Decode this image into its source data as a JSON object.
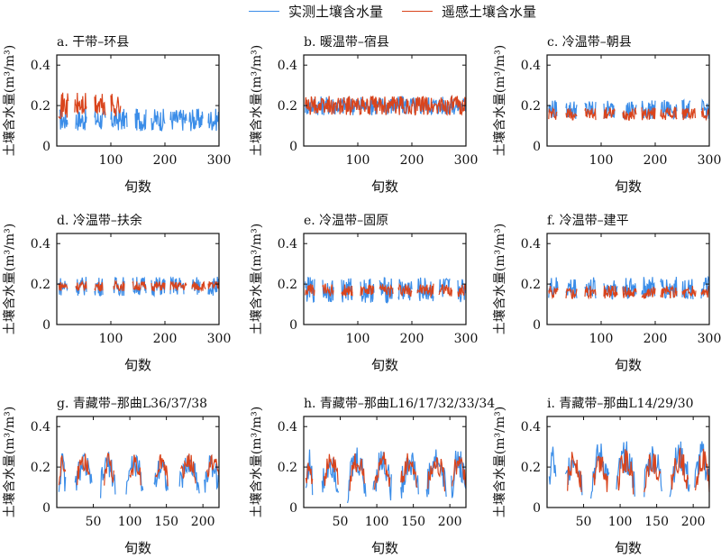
{
  "chart_data": {
    "type": "line",
    "legend": {
      "placement": "top-center",
      "entries": [
        {
          "name": "实测土壤含水量",
          "color": "#3b8de8"
        },
        {
          "name": "遥感土壤含水量",
          "color": "#d9441c"
        }
      ]
    },
    "panels": [
      {
        "id": "a",
        "title": "a. 干带–环县",
        "xlabel": "旬数",
        "ylabel": "土壤含水量(m³/m³)",
        "xlim": [
          0,
          300
        ],
        "ylim": [
          0,
          0.45
        ],
        "xticks": [
          100,
          200,
          300
        ],
        "yticks": [
          0,
          0.2,
          0.4
        ],
        "measured_segments": [
          [
            5,
            20
          ],
          [
            35,
            55
          ],
          [
            70,
            90
          ],
          [
            100,
            130
          ],
          [
            145,
            165
          ],
          [
            175,
            200
          ],
          [
            210,
            240
          ],
          [
            245,
            270
          ],
          [
            280,
            300
          ]
        ],
        "measured_level": 0.13,
        "measured_amp": 0.07,
        "remote_segments": [
          [
            3,
            22
          ],
          [
            33,
            55
          ],
          [
            70,
            90
          ],
          [
            100,
            118
          ]
        ],
        "remote_level": 0.2,
        "remote_amp": 0.08
      },
      {
        "id": "b",
        "title": "b. 暖温带–宿县",
        "xlabel": "旬数",
        "ylabel": "土壤含水量(m³/m³)",
        "xlim": [
          0,
          300
        ],
        "ylim": [
          0,
          0.45
        ],
        "xticks": [
          100,
          200,
          300
        ],
        "yticks": [
          0,
          0.2,
          0.4
        ],
        "measured_segments": [
          [
            3,
            300
          ]
        ],
        "measured_level": 0.2,
        "measured_amp": 0.06,
        "remote_segments": [
          [
            3,
            300
          ]
        ],
        "remote_level": 0.2,
        "remote_amp": 0.06
      },
      {
        "id": "c",
        "title": "c. 冷温带–朝县",
        "xlabel": "旬数",
        "ylabel": "土壤含水量(m³/m³)",
        "xlim": [
          0,
          300
        ],
        "ylim": [
          0,
          0.45
        ],
        "xticks": [
          100,
          200,
          300
        ],
        "yticks": [
          0,
          0.2,
          0.4
        ],
        "measured_segments": [
          [
            3,
            18
          ],
          [
            35,
            55
          ],
          [
            70,
            90
          ],
          [
            105,
            125
          ],
          [
            140,
            165
          ],
          [
            175,
            200
          ],
          [
            210,
            240
          ],
          [
            250,
            265
          ],
          [
            285,
            300
          ]
        ],
        "measured_level": 0.18,
        "measured_amp": 0.06,
        "remote_segments": [
          [
            3,
            18
          ],
          [
            35,
            55
          ],
          [
            70,
            90
          ],
          [
            105,
            125
          ],
          [
            140,
            165
          ],
          [
            175,
            200
          ],
          [
            210,
            240
          ],
          [
            250,
            275
          ],
          [
            285,
            300
          ]
        ],
        "remote_level": 0.16,
        "remote_amp": 0.04
      },
      {
        "id": "d",
        "title": "d. 冷温带–扶余",
        "xlabel": "旬数",
        "ylabel": "土壤含水量(m³/m³)",
        "xlim": [
          0,
          300
        ],
        "ylim": [
          0,
          0.45
        ],
        "xticks": [
          100,
          200,
          300
        ],
        "yticks": [
          0,
          0.2,
          0.4
        ],
        "measured_segments": [
          [
            3,
            20
          ],
          [
            35,
            55
          ],
          [
            70,
            85
          ],
          [
            105,
            125
          ],
          [
            140,
            165
          ],
          [
            175,
            200
          ],
          [
            210,
            235
          ],
          [
            250,
            265
          ],
          [
            280,
            300
          ]
        ],
        "measured_level": 0.19,
        "measured_amp": 0.06,
        "remote_segments": [
          [
            3,
            20
          ],
          [
            35,
            55
          ],
          [
            70,
            85
          ],
          [
            105,
            125
          ],
          [
            140,
            165
          ],
          [
            175,
            200
          ],
          [
            210,
            240
          ],
          [
            250,
            275
          ],
          [
            280,
            300
          ]
        ],
        "remote_level": 0.19,
        "remote_amp": 0.03
      },
      {
        "id": "e",
        "title": "e. 冷温带–固原",
        "xlabel": "旬数",
        "ylabel": "土壤含水量(m³/m³)",
        "xlim": [
          0,
          300
        ],
        "ylim": [
          0,
          0.45
        ],
        "xticks": [
          100,
          200,
          300
        ],
        "yticks": [
          0,
          0.2,
          0.4
        ],
        "measured_segments": [
          [
            3,
            20
          ],
          [
            35,
            55
          ],
          [
            70,
            90
          ],
          [
            105,
            130
          ],
          [
            140,
            165
          ],
          [
            175,
            200
          ],
          [
            210,
            240
          ],
          [
            250,
            270
          ],
          [
            285,
            300
          ]
        ],
        "measured_level": 0.17,
        "measured_amp": 0.08,
        "remote_segments": [
          [
            3,
            20
          ],
          [
            35,
            55
          ],
          [
            70,
            90
          ],
          [
            105,
            130
          ],
          [
            140,
            165
          ],
          [
            175,
            200
          ],
          [
            210,
            240
          ],
          [
            250,
            275
          ],
          [
            285,
            300
          ]
        ],
        "remote_level": 0.17,
        "remote_amp": 0.04
      },
      {
        "id": "f",
        "title": "f. 冷温带–建平",
        "xlabel": "旬数",
        "ylabel": "土壤含水量(m³/m³)",
        "xlim": [
          0,
          300
        ],
        "ylim": [
          0,
          0.45
        ],
        "xticks": [
          100,
          200,
          300
        ],
        "yticks": [
          0,
          0.2,
          0.4
        ],
        "measured_segments": [
          [
            3,
            20
          ],
          [
            35,
            55
          ],
          [
            70,
            90
          ],
          [
            105,
            130
          ],
          [
            140,
            165
          ],
          [
            175,
            200
          ],
          [
            210,
            240
          ],
          [
            250,
            270
          ],
          [
            285,
            300
          ]
        ],
        "measured_level": 0.18,
        "measured_amp": 0.07,
        "remote_segments": [
          [
            3,
            20
          ],
          [
            35,
            55
          ],
          [
            70,
            90
          ],
          [
            105,
            130
          ],
          [
            140,
            165
          ],
          [
            175,
            200
          ],
          [
            210,
            240
          ],
          [
            250,
            275
          ],
          [
            285,
            300
          ]
        ],
        "remote_level": 0.16,
        "remote_amp": 0.04
      },
      {
        "id": "g",
        "title": "g. 青藏带–那曲L36/37/38",
        "xlabel": "旬数",
        "ylabel": "土壤含水量(m³/m³)",
        "xlim": [
          0,
          222
        ],
        "ylim": [
          0,
          0.45
        ],
        "xticks": [
          50,
          100,
          150,
          200
        ],
        "yticks": [
          0,
          0.2,
          0.4
        ],
        "measured_segments": [
          [
            3,
            12
          ],
          [
            25,
            48
          ],
          [
            60,
            80
          ],
          [
            95,
            118
          ],
          [
            133,
            152
          ],
          [
            168,
            195
          ],
          [
            202,
            222
          ]
        ],
        "measured_level": 0.15,
        "measured_amp": 0.08,
        "peaked": true,
        "remote_segments": [
          [
            3,
            12
          ],
          [
            28,
            45
          ],
          [
            65,
            78
          ],
          [
            100,
            115
          ],
          [
            135,
            152
          ],
          [
            170,
            190
          ],
          [
            205,
            222
          ]
        ],
        "remote_level": 0.18,
        "remote_amp": 0.06
      },
      {
        "id": "h",
        "title": "h. 青藏带–那曲L16/17/32/33/34",
        "xlabel": "旬数",
        "ylabel": "土壤含水量(m³/m³)",
        "xlim": [
          0,
          222
        ],
        "ylim": [
          0,
          0.45
        ],
        "xticks": [
          50,
          100,
          150,
          200
        ],
        "yticks": [
          0,
          0.2,
          0.4
        ],
        "measured_segments": [
          [
            3,
            12
          ],
          [
            25,
            48
          ],
          [
            60,
            85
          ],
          [
            95,
            120
          ],
          [
            133,
            157
          ],
          [
            168,
            195
          ],
          [
            202,
            222
          ]
        ],
        "measured_level": 0.15,
        "measured_amp": 0.1,
        "peaked": true,
        "remote_segments": [
          [
            3,
            12
          ],
          [
            28,
            47
          ],
          [
            63,
            83
          ],
          [
            97,
            118
          ],
          [
            133,
            155
          ],
          [
            170,
            193
          ],
          [
            203,
            222
          ]
        ],
        "remote_level": 0.17,
        "remote_amp": 0.07
      },
      {
        "id": "i",
        "title": "i. 青藏带–那曲L14/29/30",
        "xlabel": "旬数",
        "ylabel": "土壤含水量(m³/m³)",
        "xlim": [
          0,
          222
        ],
        "ylim": [
          0,
          0.45
        ],
        "xticks": [
          50,
          100,
          150,
          200
        ],
        "yticks": [
          0,
          0.2,
          0.4
        ],
        "measured_segments": [
          [
            3,
            12
          ],
          [
            25,
            48
          ],
          [
            60,
            85
          ],
          [
            95,
            120
          ],
          [
            133,
            157
          ],
          [
            168,
            195
          ],
          [
            202,
            222
          ]
        ],
        "measured_level": 0.17,
        "measured_amp": 0.1,
        "peaked": true,
        "remote_segments": [
          [
            28,
            47
          ],
          [
            63,
            83
          ],
          [
            97,
            118
          ],
          [
            133,
            155
          ],
          [
            170,
            193
          ],
          [
            203,
            222
          ]
        ],
        "remote_level": 0.17,
        "remote_amp": 0.08
      }
    ]
  }
}
